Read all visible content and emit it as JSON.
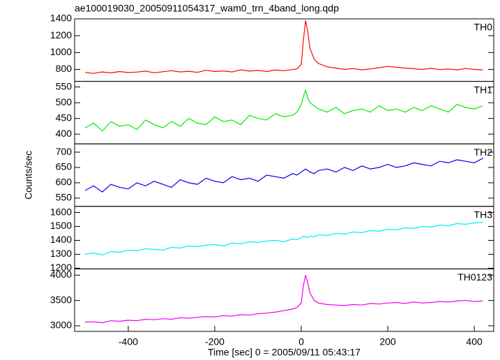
{
  "chart_data": [
    {
      "type": "line",
      "title": "ae100019030_20050911054317_wam0_trn_4band_long.qdp",
      "label": "TH0",
      "color": "#ff0000",
      "x": [
        -500,
        -480,
        -460,
        -440,
        -420,
        -400,
        -380,
        -360,
        -340,
        -320,
        -300,
        -280,
        -260,
        -240,
        -220,
        -200,
        -180,
        -160,
        -140,
        -120,
        -100,
        -80,
        -60,
        -40,
        -20,
        -10,
        0,
        5,
        10,
        15,
        20,
        30,
        40,
        60,
        80,
        100,
        120,
        140,
        160,
        180,
        200,
        220,
        240,
        260,
        280,
        300,
        320,
        340,
        360,
        380,
        400,
        420
      ],
      "values": [
        765,
        752,
        770,
        758,
        775,
        762,
        768,
        780,
        760,
        772,
        785,
        770,
        778,
        765,
        790,
        775,
        782,
        770,
        795,
        780,
        788,
        775,
        792,
        785,
        798,
        805,
        860,
        1150,
        1380,
        1250,
        1050,
        920,
        870,
        830,
        815,
        800,
        810,
        795,
        805,
        820,
        835,
        825,
        815,
        808,
        800,
        812,
        798,
        805,
        795,
        810,
        800,
        795
      ],
      "xlim": [
        -524,
        445
      ],
      "ylim": [
        658,
        1400
      ],
      "yticks": [
        800,
        1000,
        1200,
        1400
      ]
    },
    {
      "type": "line",
      "label": "TH1",
      "color": "#00ee00",
      "x": [
        -500,
        -480,
        -460,
        -440,
        -420,
        -400,
        -380,
        -360,
        -340,
        -320,
        -300,
        -280,
        -260,
        -240,
        -220,
        -200,
        -180,
        -160,
        -140,
        -120,
        -100,
        -80,
        -60,
        -40,
        -20,
        -10,
        0,
        5,
        10,
        15,
        20,
        30,
        40,
        60,
        80,
        100,
        120,
        140,
        160,
        180,
        200,
        220,
        240,
        260,
        280,
        300,
        320,
        340,
        360,
        380,
        400,
        420
      ],
      "values": [
        420,
        435,
        410,
        440,
        425,
        430,
        415,
        445,
        430,
        420,
        440,
        425,
        450,
        435,
        430,
        455,
        440,
        445,
        430,
        460,
        450,
        445,
        465,
        455,
        460,
        470,
        495,
        520,
        540,
        515,
        500,
        490,
        480,
        470,
        485,
        465,
        475,
        480,
        470,
        490,
        475,
        480,
        470,
        485,
        475,
        490,
        480,
        470,
        495,
        485,
        480,
        490
      ],
      "xlim": [
        -524,
        445
      ],
      "ylim": [
        369,
        568
      ],
      "yticks": [
        400,
        450,
        500,
        550
      ]
    },
    {
      "type": "line",
      "label": "TH2",
      "ylabel": "Counts/sec",
      "color": "#0000ee",
      "x": [
        -500,
        -480,
        -460,
        -440,
        -420,
        -400,
        -380,
        -360,
        -340,
        -320,
        -300,
        -280,
        -260,
        -240,
        -220,
        -200,
        -180,
        -160,
        -140,
        -120,
        -100,
        -80,
        -60,
        -40,
        -20,
        -10,
        0,
        5,
        10,
        15,
        20,
        30,
        40,
        60,
        80,
        100,
        120,
        140,
        160,
        180,
        200,
        220,
        240,
        260,
        280,
        300,
        320,
        340,
        360,
        380,
        400,
        420
      ],
      "values": [
        575,
        590,
        570,
        595,
        585,
        580,
        600,
        590,
        605,
        595,
        585,
        610,
        600,
        595,
        615,
        605,
        600,
        620,
        610,
        615,
        605,
        625,
        620,
        615,
        630,
        625,
        635,
        640,
        645,
        640,
        635,
        630,
        640,
        645,
        635,
        650,
        640,
        655,
        645,
        650,
        660,
        650,
        655,
        665,
        660,
        655,
        670,
        665,
        675,
        670,
        665,
        680
      ],
      "xlim": [
        -524,
        445
      ],
      "ylim": [
        523,
        727
      ],
      "yticks": [
        550,
        600,
        650,
        700
      ]
    },
    {
      "type": "line",
      "label": "TH3",
      "color": "#00eeee",
      "x": [
        -500,
        -480,
        -460,
        -440,
        -420,
        -400,
        -380,
        -360,
        -340,
        -320,
        -300,
        -280,
        -260,
        -240,
        -220,
        -200,
        -180,
        -160,
        -140,
        -120,
        -100,
        -80,
        -60,
        -40,
        -20,
        -10,
        0,
        5,
        10,
        15,
        20,
        30,
        40,
        60,
        80,
        100,
        120,
        140,
        160,
        180,
        200,
        220,
        240,
        260,
        280,
        300,
        320,
        340,
        360,
        380,
        400,
        420
      ],
      "values": [
        1300,
        1310,
        1295,
        1320,
        1315,
        1330,
        1325,
        1340,
        1335,
        1330,
        1350,
        1345,
        1360,
        1355,
        1365,
        1370,
        1360,
        1380,
        1375,
        1390,
        1385,
        1395,
        1400,
        1390,
        1410,
        1405,
        1420,
        1430,
        1425,
        1420,
        1430,
        1425,
        1440,
        1435,
        1450,
        1445,
        1460,
        1455,
        1470,
        1465,
        1480,
        1475,
        1490,
        1485,
        1500,
        1495,
        1510,
        1505,
        1520,
        1515,
        1525,
        1530
      ],
      "xlim": [
        -524,
        445
      ],
      "ylim": [
        1195,
        1644
      ],
      "yticks": [
        1200,
        1300,
        1400,
        1500,
        1600
      ]
    },
    {
      "type": "line",
      "label": "TH0123",
      "xlabel": "Time [sec] 0 = 2005/09/11 05:43:17",
      "color": "#ee00ee",
      "x": [
        -500,
        -480,
        -460,
        -440,
        -420,
        -400,
        -380,
        -360,
        -340,
        -320,
        -300,
        -280,
        -260,
        -240,
        -220,
        -200,
        -180,
        -160,
        -140,
        -120,
        -100,
        -80,
        -60,
        -40,
        -20,
        -10,
        0,
        5,
        10,
        15,
        20,
        30,
        40,
        60,
        80,
        100,
        120,
        140,
        160,
        180,
        200,
        220,
        240,
        260,
        280,
        300,
        320,
        340,
        360,
        380,
        400,
        420
      ],
      "values": [
        3070,
        3080,
        3060,
        3100,
        3090,
        3110,
        3100,
        3130,
        3120,
        3140,
        3130,
        3160,
        3150,
        3170,
        3180,
        3175,
        3200,
        3190,
        3220,
        3210,
        3240,
        3250,
        3270,
        3300,
        3330,
        3360,
        3450,
        3800,
        4000,
        3850,
        3650,
        3500,
        3450,
        3420,
        3410,
        3400,
        3420,
        3410,
        3440,
        3430,
        3450,
        3460,
        3440,
        3470,
        3450,
        3460,
        3480,
        3470,
        3490,
        3500,
        3480,
        3490
      ],
      "xlim": [
        -524,
        445
      ],
      "ylim": [
        2890,
        4123
      ],
      "yticks": [
        3000,
        3500,
        4000
      ],
      "xticks": [
        -400,
        -200,
        0,
        200,
        400
      ]
    }
  ]
}
